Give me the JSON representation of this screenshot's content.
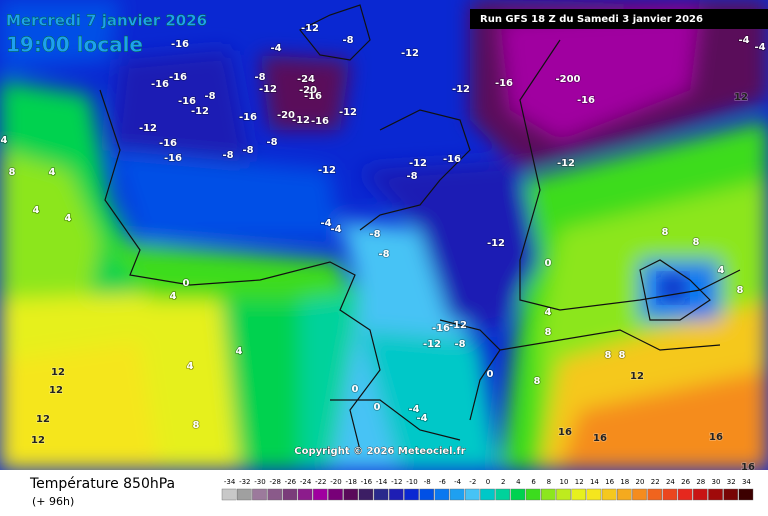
{
  "header": {
    "date": "Mercredi 7 janvier 2026",
    "time": "19:00 locale",
    "run": "Run GFS 18 Z du Samedi 3 janvier 2026"
  },
  "map": {
    "copyright": "Copyright © 2026 Meteociel.fr",
    "labels": [
      "-16",
      "-4",
      "-12",
      "-8",
      "-12",
      "-16",
      "-16",
      "-16",
      "-8",
      "-12",
      "-8",
      "-12",
      "-24",
      "-20",
      "-16",
      "-16",
      "-20",
      "-12",
      "-16",
      "-12",
      "-12",
      "-16",
      "-200",
      "-16",
      "-12",
      "-16",
      "-16",
      "-8",
      "-8",
      "-8",
      "-12",
      "-12",
      "-16",
      "-8",
      "-12",
      "-4",
      "-4",
      "-8",
      "-8",
      "-12",
      "0",
      "0",
      "4",
      "-16",
      "-12",
      "-12",
      "-8",
      "0",
      "4",
      "4",
      "0",
      "0",
      "-4",
      "-4",
      "8",
      "12",
      "12",
      "12",
      "12",
      "16",
      "16",
      "16",
      "16",
      "4",
      "8",
      "4",
      "4",
      "4",
      "8",
      "8",
      "4",
      "8",
      "4",
      "8",
      "8",
      "8",
      "12",
      "8",
      "12",
      "-4",
      "-4"
    ]
  },
  "footer": {
    "variable": "Température 850hPa",
    "lead": "(+ 96h)"
  },
  "legend": {
    "values": [
      -34,
      -32,
      -30,
      -28,
      -26,
      -24,
      -22,
      -20,
      -18,
      -16,
      -14,
      -12,
      -10,
      -8,
      -6,
      -4,
      -2,
      0,
      2,
      4,
      6,
      8,
      10,
      12,
      14,
      16,
      18,
      20,
      22,
      24,
      26,
      28,
      30,
      32,
      34
    ],
    "colors": [
      "#c8c8c8",
      "#a0a0a0",
      "#9c7a9c",
      "#8a5a8a",
      "#7a3c7a",
      "#8c1c8c",
      "#a000a0",
      "#780078",
      "#5a0a5a",
      "#3c1e64",
      "#2a2a8c",
      "#1e1eb4",
      "#0a28d2",
      "#0050e6",
      "#0a78f0",
      "#1ea0f0",
      "#46c3f5",
      "#00c8c8",
      "#00d29b",
      "#00d250",
      "#3cdc1e",
      "#8ce61e",
      "#beeb1e",
      "#e6f01e",
      "#f5e61e",
      "#f5c81e",
      "#f5aa1e",
      "#f58c1e",
      "#f0641e",
      "#eb461e",
      "#e6281e",
      "#c81414",
      "#a00a0a",
      "#780505",
      "#3c0000"
    ]
  }
}
